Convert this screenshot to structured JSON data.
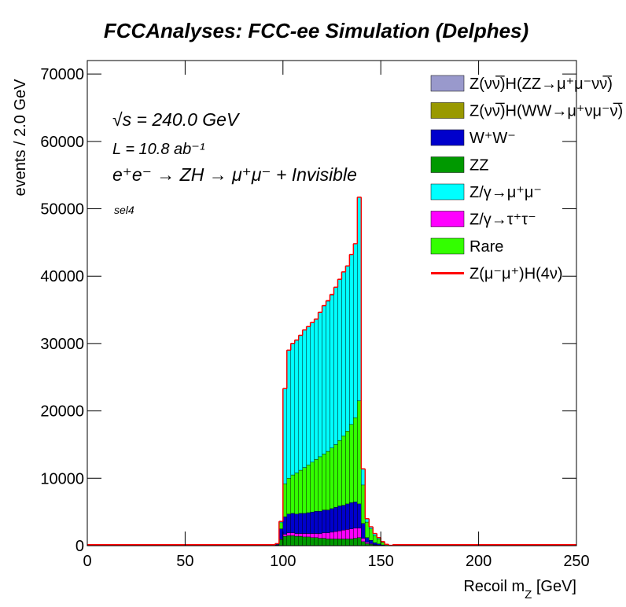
{
  "chart_data": {
    "type": "stacked_histogram",
    "title": "FCCAnalyses: FCC-ee Simulation (Delphes)",
    "x_label": "Recoil m_Z [GeV]",
    "y_label": "events / 2.0 GeV",
    "annotations": [
      "√s = 240.0 GeV",
      "L = 10.8 ab⁻¹",
      "e⁺e⁻ → ZH → μ⁺μ⁻ + Invisible",
      "sel4"
    ],
    "xlim": [
      0,
      250
    ],
    "xticks": [
      0,
      50,
      100,
      150,
      200,
      250
    ],
    "ylim": [
      0,
      72000
    ],
    "yticks": [
      0,
      10000,
      20000,
      30000,
      40000,
      50000,
      60000,
      70000
    ],
    "bins": [
      96,
      98,
      100,
      102,
      104,
      106,
      108,
      110,
      112,
      114,
      116,
      118,
      120,
      122,
      124,
      126,
      128,
      130,
      132,
      134,
      136,
      138,
      140,
      142,
      144,
      146,
      148,
      150,
      152,
      154,
      156
    ],
    "series": [
      {
        "name": "Z(νν̅)H(ZZ→μ⁺μ⁻νν̅)",
        "color": "#9999cc",
        "values": [
          0,
          0,
          10,
          10,
          10,
          10,
          10,
          10,
          10,
          10,
          10,
          10,
          10,
          10,
          10,
          10,
          10,
          10,
          10,
          10,
          10,
          10,
          0,
          0,
          0,
          0,
          0,
          0,
          0,
          0
        ]
      },
      {
        "name": "Z(νν̅)H(WW→μ⁺νμ⁻ν̅)",
        "color": "#999900",
        "values": [
          0,
          0,
          10,
          10,
          10,
          10,
          10,
          10,
          10,
          10,
          10,
          10,
          10,
          10,
          10,
          10,
          10,
          10,
          10,
          10,
          10,
          10,
          0,
          0,
          0,
          0,
          0,
          0,
          0,
          0
        ]
      },
      {
        "name": "W⁺W⁻",
        "color": "#0000cc",
        "values": [
          100,
          1500,
          2600,
          2800,
          2900,
          2900,
          3000,
          3000,
          3100,
          3200,
          3300,
          3300,
          3400,
          3400,
          3500,
          3600,
          3700,
          3700,
          3800,
          3900,
          3900,
          3600,
          2200,
          700,
          500,
          300,
          200,
          100,
          50,
          20
        ]
      },
      {
        "name": "ZZ",
        "color": "#009900",
        "values": [
          100,
          900,
          1400,
          1500,
          1500,
          1400,
          1400,
          1300,
          1300,
          1200,
          1200,
          1100,
          1100,
          1000,
          1000,
          1000,
          1000,
          1000,
          1000,
          1000,
          1100,
          1200,
          600,
          300,
          200,
          100,
          50,
          20,
          0,
          0
        ]
      },
      {
        "name": "Z/γ→μ⁺μ⁻",
        "color": "#00ffff",
        "values": [
          0,
          200,
          14100,
          19000,
          19500,
          19700,
          20000,
          20400,
          20500,
          20700,
          20800,
          21400,
          22000,
          22300,
          22700,
          23300,
          23900,
          24300,
          24500,
          25200,
          25800,
          30200,
          2400,
          500,
          300,
          300,
          200,
          100,
          50,
          20
        ]
      },
      {
        "name": "Z/γ→τ⁺τ⁻",
        "color": "#ff00ff",
        "values": [
          0,
          100,
          300,
          400,
          400,
          400,
          400,
          500,
          500,
          600,
          600,
          700,
          800,
          900,
          1000,
          1100,
          1200,
          1300,
          1400,
          1500,
          1500,
          1400,
          500,
          200,
          100,
          50,
          20,
          0,
          0,
          0
        ]
      },
      {
        "name": "Rare",
        "color": "#33ff00",
        "values": [
          100,
          900,
          4900,
          5300,
          5700,
          6100,
          6400,
          6800,
          7100,
          7400,
          7700,
          8100,
          8300,
          8700,
          9000,
          9300,
          9700,
          10300,
          10800,
          11600,
          12500,
          15300,
          5700,
          2300,
          1700,
          1050,
          730,
          380,
          100,
          10
        ]
      },
      {
        "name": "Z(μ⁻μ⁺)H(4ν)",
        "color": "#ff0000",
        "values": [
          0,
          0,
          0,
          0,
          0,
          0,
          0,
          0,
          0,
          0,
          0,
          10,
          20,
          40,
          60,
          40,
          20,
          10,
          0,
          0,
          0,
          0,
          0,
          0,
          0,
          0,
          0,
          0,
          0,
          0
        ]
      }
    ]
  }
}
